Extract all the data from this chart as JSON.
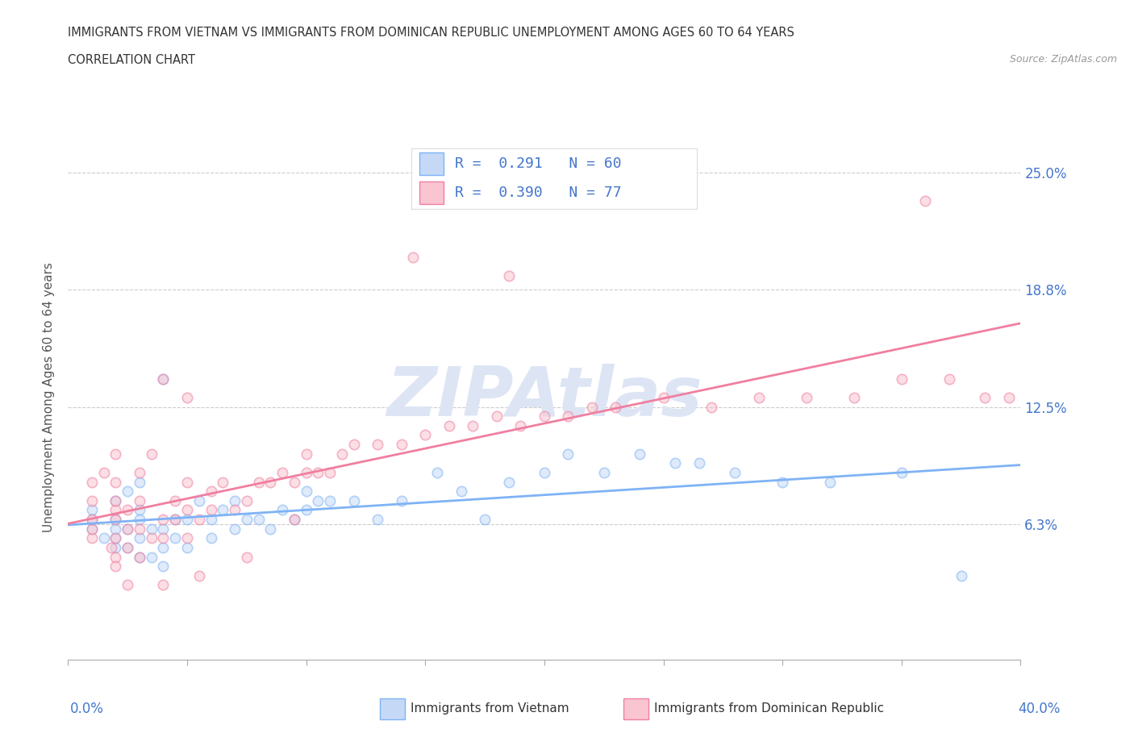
{
  "title_line1": "IMMIGRANTS FROM VIETNAM VS IMMIGRANTS FROM DOMINICAN REPUBLIC UNEMPLOYMENT AMONG AGES 60 TO 64 YEARS",
  "title_line2": "CORRELATION CHART",
  "source_text": "Source: ZipAtlas.com",
  "ylabel": "Unemployment Among Ages 60 to 64 years",
  "ytick_vals": [
    0.0,
    0.0625,
    0.125,
    0.1875,
    0.25
  ],
  "ytick_labels": [
    "",
    "6.3%",
    "12.5%",
    "18.8%",
    "25.0%"
  ],
  "xlim": [
    0.0,
    0.4
  ],
  "ylim": [
    -0.01,
    0.27
  ],
  "vietnam_color": "#7fb3f5",
  "vietnam_fill": "#c5d9f7",
  "dr_color": "#f07fa0",
  "dr_fill": "#f9c5d0",
  "legend_text_color": "#4477cc",
  "vietnam_label": "Immigrants from Vietnam",
  "dr_label": "Immigrants from Dominican Republic",
  "vietnam_R": 0.291,
  "vietnam_N": 60,
  "dr_R": 0.39,
  "dr_N": 77,
  "background_color": "#ffffff",
  "grid_color": "#cccccc",
  "watermark_color": "#dde5f5",
  "scatter_alpha": 0.55,
  "scatter_size": 80,
  "vietnam_x": [
    0.01,
    0.01,
    0.01,
    0.015,
    0.02,
    0.02,
    0.02,
    0.02,
    0.02,
    0.025,
    0.025,
    0.025,
    0.03,
    0.03,
    0.03,
    0.03,
    0.03,
    0.035,
    0.035,
    0.04,
    0.04,
    0.04,
    0.04,
    0.045,
    0.045,
    0.05,
    0.05,
    0.055,
    0.06,
    0.06,
    0.065,
    0.07,
    0.07,
    0.075,
    0.08,
    0.085,
    0.09,
    0.095,
    0.1,
    0.1,
    0.105,
    0.11,
    0.12,
    0.13,
    0.14,
    0.155,
    0.165,
    0.175,
    0.185,
    0.2,
    0.21,
    0.225,
    0.24,
    0.255,
    0.265,
    0.28,
    0.3,
    0.32,
    0.35,
    0.375
  ],
  "vietnam_y": [
    0.06,
    0.065,
    0.07,
    0.055,
    0.05,
    0.055,
    0.06,
    0.065,
    0.075,
    0.05,
    0.06,
    0.08,
    0.045,
    0.055,
    0.065,
    0.07,
    0.085,
    0.045,
    0.06,
    0.04,
    0.05,
    0.06,
    0.14,
    0.055,
    0.065,
    0.05,
    0.065,
    0.075,
    0.055,
    0.065,
    0.07,
    0.06,
    0.075,
    0.065,
    0.065,
    0.06,
    0.07,
    0.065,
    0.07,
    0.08,
    0.075,
    0.075,
    0.075,
    0.065,
    0.075,
    0.09,
    0.08,
    0.065,
    0.085,
    0.09,
    0.1,
    0.09,
    0.1,
    0.095,
    0.095,
    0.09,
    0.085,
    0.085,
    0.09,
    0.035
  ],
  "dr_x": [
    0.01,
    0.01,
    0.01,
    0.01,
    0.01,
    0.015,
    0.018,
    0.02,
    0.02,
    0.02,
    0.02,
    0.02,
    0.02,
    0.02,
    0.025,
    0.025,
    0.025,
    0.03,
    0.03,
    0.03,
    0.03,
    0.035,
    0.035,
    0.04,
    0.04,
    0.04,
    0.045,
    0.045,
    0.05,
    0.05,
    0.05,
    0.055,
    0.06,
    0.06,
    0.065,
    0.07,
    0.075,
    0.08,
    0.085,
    0.09,
    0.095,
    0.1,
    0.1,
    0.105,
    0.11,
    0.115,
    0.12,
    0.13,
    0.14,
    0.15,
    0.16,
    0.17,
    0.18,
    0.19,
    0.2,
    0.21,
    0.22,
    0.23,
    0.25,
    0.27,
    0.29,
    0.31,
    0.33,
    0.35,
    0.36,
    0.37,
    0.385,
    0.395,
    0.145,
    0.185,
    0.05,
    0.095,
    0.075,
    0.055,
    0.04,
    0.025,
    0.02
  ],
  "dr_y": [
    0.055,
    0.06,
    0.065,
    0.075,
    0.085,
    0.09,
    0.05,
    0.045,
    0.055,
    0.065,
    0.07,
    0.075,
    0.085,
    0.1,
    0.05,
    0.06,
    0.07,
    0.045,
    0.06,
    0.075,
    0.09,
    0.055,
    0.1,
    0.055,
    0.065,
    0.14,
    0.065,
    0.075,
    0.055,
    0.07,
    0.085,
    0.065,
    0.07,
    0.08,
    0.085,
    0.07,
    0.075,
    0.085,
    0.085,
    0.09,
    0.085,
    0.09,
    0.1,
    0.09,
    0.09,
    0.1,
    0.105,
    0.105,
    0.105,
    0.11,
    0.115,
    0.115,
    0.12,
    0.115,
    0.12,
    0.12,
    0.125,
    0.125,
    0.13,
    0.125,
    0.13,
    0.13,
    0.13,
    0.14,
    0.235,
    0.14,
    0.13,
    0.13,
    0.205,
    0.195,
    0.13,
    0.065,
    0.045,
    0.035,
    0.03,
    0.03,
    0.04
  ]
}
